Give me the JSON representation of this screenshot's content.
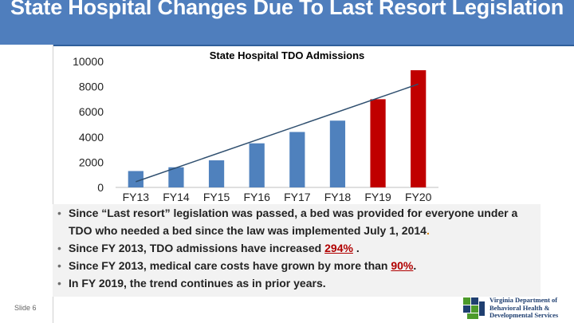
{
  "slide": {
    "title": "State Hospital Changes Due To Last Resort Legislation",
    "slide_number_label": "Slide 6"
  },
  "chart_data": {
    "type": "bar",
    "title": "State Hospital TDO Admissions",
    "categories": [
      "FY13",
      "FY14",
      "FY15",
      "FY16",
      "FY17",
      "FY18",
      "FY19",
      "FY20"
    ],
    "values": [
      1300,
      1600,
      2150,
      3500,
      4400,
      5300,
      7000,
      9300
    ],
    "bar_colors": [
      "#4f81bd",
      "#4f81bd",
      "#4f81bd",
      "#4f81bd",
      "#4f81bd",
      "#4f81bd",
      "#c00000",
      "#c00000"
    ],
    "ylim": [
      0,
      10000
    ],
    "yticks": [
      0,
      2000,
      4000,
      6000,
      8000,
      10000
    ],
    "trendline": {
      "x_start": "FY13",
      "y_start": 450,
      "x_end": "FY20",
      "y_end": 8200,
      "color": "#2f4f6f"
    },
    "xlabel": "",
    "ylabel": ""
  },
  "bullets": [
    {
      "text": "Since “Last resort” legislation was passed, a bed was provided for everyone under a TDO who needed a bed since the law was implemented July 1, 2014",
      "suffix": "."
    },
    {
      "prefix": "Since FY 2013, TDO admissions have increased ",
      "highlight": "294%",
      "suffix": " ."
    },
    {
      "prefix": "Since FY 2013, medical care costs have grown by  more than ",
      "highlight": "90%",
      "suffix": "."
    },
    {
      "text": "In FY 2019, the trend continues as in prior years."
    }
  ],
  "logo": {
    "line1": "Virginia Department of",
    "line2": "Behavioral Health &",
    "line3": "Developmental Services",
    "colors": {
      "green": "#4c9a2a",
      "blue": "#1f3f70"
    }
  }
}
